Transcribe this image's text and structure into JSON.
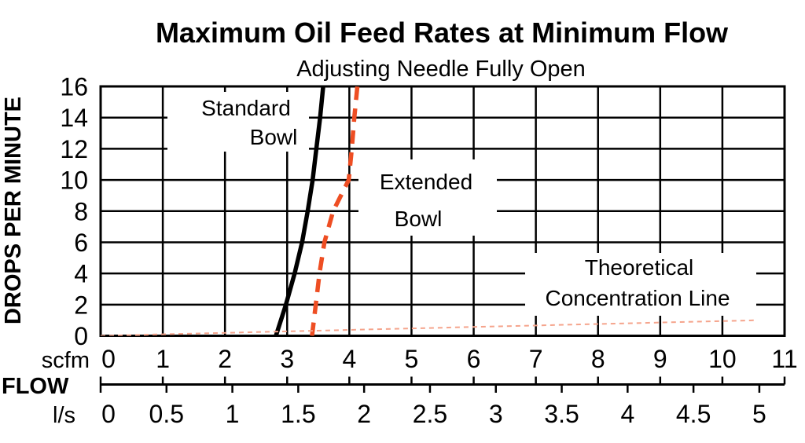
{
  "title": "Maximum Oil Feed Rates at Minimum Flow",
  "subtitle": "Adjusting Needle Fully Open",
  "y_axis_label": "DROPS PER MINUTE",
  "flow_axis": {
    "primary_unit": "scfm",
    "label": "FLOW",
    "secondary_unit": "l/s"
  },
  "annotations": {
    "standard_line1": "Standard",
    "standard_line2": "Bowl",
    "extended_line1": "Extended",
    "extended_line2": "Bowl",
    "theoretical_line1": "Theoretical",
    "theoretical_line2": "Concentration Line"
  },
  "colors": {
    "ink": "#000000",
    "grid": "#000000",
    "extended_dash": "#EE4E23",
    "theoretical_dash": "#F5A48C"
  },
  "chart_data": {
    "type": "line",
    "title": "Maximum Oil Feed Rates at Minimum Flow",
    "subtitle": "Adjusting Needle Fully Open",
    "grid": {
      "visible": true,
      "x_step_scfm": 1,
      "y_step_drops": 2
    },
    "y_axis": {
      "label": "DROPS PER MINUTE",
      "min": 0,
      "max": 16,
      "tick_values": [
        16,
        14,
        12,
        10,
        8,
        6,
        4,
        2,
        0
      ],
      "tick_labels": [
        "16",
        "14",
        "12",
        "10",
        "8",
        "6",
        "4",
        "2",
        "0"
      ]
    },
    "x_axis": {
      "label": "FLOW",
      "primary": {
        "unit": "scfm",
        "min": 0,
        "max": 11,
        "tick_values": [
          0,
          1,
          2,
          3,
          4,
          5,
          6,
          7,
          8,
          9,
          10,
          11
        ],
        "tick_labels": [
          "0",
          "1",
          "2",
          "3",
          "4",
          "5",
          "6",
          "7",
          "8",
          "9",
          "10",
          "11"
        ]
      },
      "secondary": {
        "unit": "l/s",
        "min": 0,
        "max": 5,
        "scfm_per_ls": 2.11888,
        "tick_values": [
          0,
          0.5,
          1,
          1.5,
          2,
          2.5,
          3,
          3.5,
          4,
          4.5,
          5
        ],
        "tick_labels": [
          "0",
          "0.5",
          "1",
          "1.5",
          "2",
          "2.5",
          "3",
          "3.5",
          "4",
          "4.5",
          "5"
        ]
      }
    },
    "series": [
      {
        "name": "Standard Bowl",
        "style": "solid",
        "color": "#000000",
        "width": 5.5,
        "points_scfm_drops": [
          [
            2.82,
            0
          ],
          [
            2.98,
            2
          ],
          [
            3.12,
            4
          ],
          [
            3.24,
            6
          ],
          [
            3.33,
            8
          ],
          [
            3.41,
            10
          ],
          [
            3.47,
            12
          ],
          [
            3.53,
            14
          ],
          [
            3.58,
            16
          ]
        ]
      },
      {
        "name": "Extended Bowl",
        "style": "dashed",
        "color": "#EE4E23",
        "width": 5.5,
        "points_scfm_drops": [
          [
            3.4,
            0
          ],
          [
            3.46,
            2
          ],
          [
            3.52,
            4
          ],
          [
            3.6,
            6
          ],
          [
            3.74,
            8
          ],
          [
            3.99,
            10
          ],
          [
            4.04,
            12
          ],
          [
            4.08,
            14
          ],
          [
            4.13,
            16
          ]
        ]
      },
      {
        "name": "Theoretical Concentration Line",
        "style": "fine-dashed",
        "color": "#F5A48C",
        "width": 2,
        "points_scfm_drops": [
          [
            0,
            0
          ],
          [
            10.56,
            1.0
          ]
        ]
      }
    ]
  }
}
